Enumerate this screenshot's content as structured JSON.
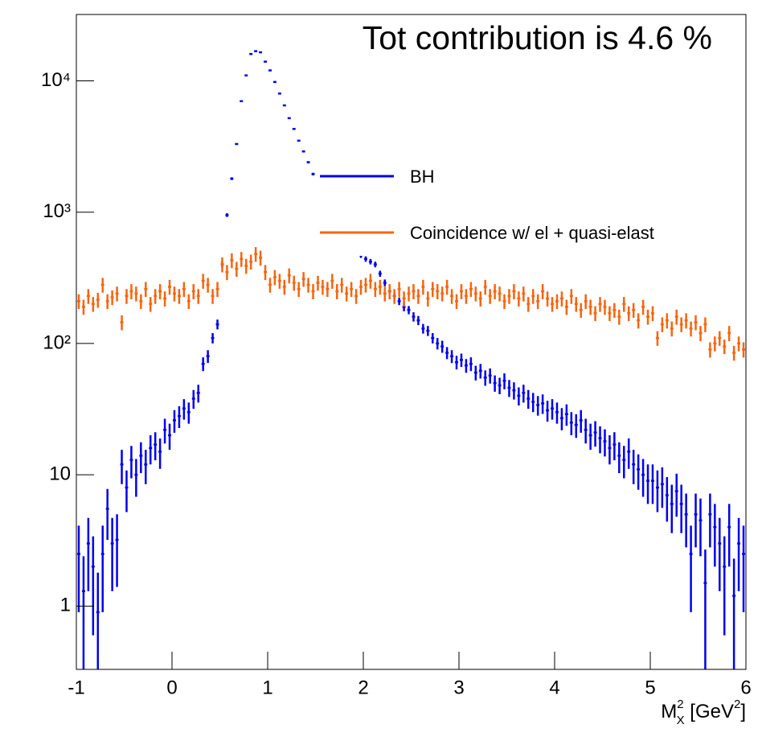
{
  "chart_data": {
    "type": "histogram",
    "title": "Tot contribution is 4.6 %",
    "title_color": "#f7650f",
    "x_label": {
      "base": "M",
      "sup": "2",
      "sub": "X",
      "unit": " [GeV",
      "unit_sup": "2",
      "close": "]"
    },
    "log_y": true,
    "xlim": [
      -1,
      6
    ],
    "xticks": [
      -1,
      0,
      1,
      2,
      3,
      4,
      5,
      6
    ],
    "ylim": [
      0.33,
      32000
    ],
    "yticks": [
      1,
      10,
      {
        "value": 100,
        "label": "10²"
      },
      {
        "value": 1000,
        "label": "10³"
      },
      {
        "value": 10000,
        "label": "10⁴"
      }
    ],
    "bins": [
      -1,
      -0.95,
      -0.9,
      -0.85,
      -0.8,
      -0.75,
      -0.7,
      -0.65,
      -0.6,
      -0.55,
      -0.5,
      -0.45,
      -0.4,
      -0.35,
      -0.3,
      -0.25,
      -0.2,
      -0.15,
      -0.1,
      -0.05,
      0,
      0.05,
      0.1,
      0.15,
      0.2,
      0.25,
      0.3,
      0.35,
      0.4,
      0.45,
      0.5,
      0.55,
      0.6,
      0.65,
      0.7,
      0.75,
      0.8,
      0.85,
      0.9,
      0.95,
      1,
      1.05,
      1.1,
      1.15,
      1.2,
      1.25,
      1.3,
      1.35,
      1.4,
      1.45,
      1.5,
      1.55,
      1.6,
      1.65,
      1.7,
      1.75,
      1.8,
      1.85,
      1.9,
      1.95,
      2,
      2.05,
      2.1,
      2.15,
      2.2,
      2.25,
      2.3,
      2.35,
      2.4,
      2.45,
      2.5,
      2.55,
      2.6,
      2.65,
      2.7,
      2.75,
      2.8,
      2.85,
      2.9,
      2.95,
      3,
      3.05,
      3.1,
      3.15,
      3.2,
      3.25,
      3.3,
      3.35,
      3.4,
      3.45,
      3.5,
      3.55,
      3.6,
      3.65,
      3.7,
      3.75,
      3.8,
      3.85,
      3.9,
      3.95,
      4,
      4.05,
      4.1,
      4.15,
      4.2,
      4.25,
      4.3,
      4.35,
      4.4,
      4.45,
      4.5,
      4.55,
      4.6,
      4.65,
      4.7,
      4.75,
      4.8,
      4.85,
      4.9,
      4.95,
      5,
      5.05,
      5.1,
      5.15,
      5.2,
      5.25,
      5.3,
      5.35,
      5.4,
      5.45,
      5.5,
      5.55,
      5.6,
      5.65,
      5.7,
      5.75,
      5.8,
      5.85,
      5.9,
      5.95,
      6
    ],
    "series": [
      {
        "name": "BH",
        "color": "#0000f0",
        "values": [
          2.5,
          1.3,
          3,
          2,
          0.9,
          2.5,
          5.5,
          3,
          3.2,
          12,
          8,
          13,
          10,
          14,
          12,
          16,
          17,
          15,
          22,
          20,
          26,
          28,
          32,
          30,
          38,
          42,
          70,
          80,
          110,
          140,
          400,
          950,
          1800,
          3300,
          7000,
          11000,
          16000,
          16800,
          16500,
          14000,
          12000,
          9800,
          8000,
          6500,
          5200,
          4300,
          3500,
          2900,
          2400,
          1950,
          1650,
          1400,
          1200,
          1020,
          880,
          760,
          660,
          580,
          520,
          470,
          440,
          420,
          400,
          340,
          290,
          250,
          230,
          210,
          190,
          180,
          160,
          150,
          130,
          125,
          110,
          100,
          95,
          85,
          80,
          72,
          75,
          68,
          70,
          60,
          62,
          55,
          57,
          50,
          48,
          52,
          46,
          44,
          40,
          42,
          38,
          36,
          34,
          35,
          31,
          32,
          30,
          27,
          29,
          25,
          24,
          26,
          22,
          20,
          21,
          19,
          18,
          16,
          17,
          14,
          13,
          15,
          12,
          11,
          10,
          9,
          9,
          8,
          8.5,
          7,
          6,
          7.5,
          6,
          5,
          2.5,
          5,
          4.5,
          1.5,
          5,
          4,
          3,
          2,
          4,
          1.2,
          3,
          2.5
        ],
        "errors": [
          1.6,
          1.1,
          1.7,
          1.4,
          0.9,
          1.6,
          2.3,
          1.7,
          1.8,
          3.5,
          2.8,
          3.6,
          3.2,
          3.7,
          3.5,
          4,
          4.1,
          3.9,
          4.7,
          4.5,
          5.1,
          5.3,
          5.7,
          5.5,
          6.2,
          6.5,
          8.4,
          8.9,
          10,
          12,
          20,
          31,
          42,
          57,
          84,
          105,
          126,
          130,
          128,
          118,
          110,
          99,
          89,
          81,
          72,
          66,
          59,
          54,
          49,
          44,
          41,
          37,
          35,
          32,
          30,
          28,
          26,
          24,
          23,
          22,
          21,
          20,
          20,
          18,
          17,
          16,
          15,
          14,
          14,
          13,
          13,
          12,
          11,
          11,
          10,
          10,
          10,
          9,
          9,
          8.5,
          8.7,
          8.2,
          8.4,
          7.7,
          7.9,
          7.4,
          7.5,
          7.1,
          6.9,
          7.2,
          6.8,
          6.6,
          6.3,
          6.5,
          6.2,
          6,
          5.8,
          5.9,
          5.6,
          5.7,
          5.5,
          5.2,
          5.4,
          5,
          4.9,
          5.1,
          4.7,
          4.5,
          4.6,
          4.4,
          4.2,
          4,
          4.1,
          3.7,
          3.6,
          3.9,
          3.5,
          3.3,
          3.2,
          3,
          3,
          2.8,
          2.9,
          2.6,
          2.4,
          2.7,
          2.4,
          2.2,
          1.6,
          2.2,
          2.1,
          1.2,
          2.2,
          2,
          1.7,
          1.4,
          2,
          1.1,
          1.7,
          1.6
        ]
      },
      {
        "name": "Coincidence w/ el + quasi-elast",
        "color": "#f7650f",
        "values": [
          210,
          190,
          230,
          200,
          215,
          280,
          210,
          225,
          240,
          145,
          230,
          250,
          240,
          210,
          260,
          200,
          230,
          250,
          220,
          270,
          240,
          230,
          260,
          210,
          250,
          230,
          300,
          280,
          230,
          260,
          400,
          350,
          430,
          370,
          440,
          390,
          420,
          480,
          450,
          350,
          280,
          320,
          300,
          270,
          330,
          290,
          260,
          310,
          280,
          250,
          290,
          270,
          260,
          300,
          250,
          280,
          240,
          260,
          230,
          270,
          280,
          300,
          260,
          270,
          240,
          250,
          230,
          260,
          220,
          240,
          250,
          230,
          270,
          220,
          260,
          250,
          240,
          270,
          230,
          210,
          250,
          230,
          260,
          240,
          220,
          270,
          230,
          250,
          240,
          210,
          230,
          250,
          220,
          240,
          200,
          230,
          210,
          250,
          220,
          200,
          210,
          220,
          190,
          230,
          200,
          180,
          210,
          190,
          170,
          200,
          190,
          170,
          180,
          160,
          200,
          170,
          180,
          150,
          190,
          160,
          170,
          110,
          140,
          150,
          130,
          160,
          140,
          150,
          130,
          145,
          120,
          140,
          90,
          100,
          110,
          95,
          120,
          85,
          100,
          90
        ],
        "errors": [
          27,
          25,
          30,
          26,
          28,
          36,
          27,
          29,
          31,
          19,
          30,
          33,
          31,
          27,
          34,
          26,
          30,
          33,
          29,
          35,
          31,
          30,
          34,
          27,
          33,
          30,
          39,
          36,
          30,
          34,
          52,
          46,
          56,
          48,
          57,
          51,
          55,
          62,
          59,
          46,
          36,
          42,
          39,
          35,
          43,
          38,
          34,
          40,
          36,
          33,
          38,
          35,
          34,
          39,
          33,
          36,
          31,
          34,
          30,
          35,
          36,
          39,
          34,
          35,
          31,
          33,
          30,
          34,
          29,
          31,
          33,
          30,
          35,
          29,
          34,
          33,
          31,
          35,
          30,
          27,
          33,
          30,
          34,
          31,
          29,
          35,
          30,
          33,
          31,
          27,
          30,
          33,
          29,
          31,
          26,
          30,
          27,
          33,
          29,
          26,
          27,
          29,
          25,
          30,
          26,
          23,
          27,
          25,
          22,
          26,
          25,
          22,
          23,
          21,
          26,
          22,
          23,
          20,
          25,
          21,
          22,
          14,
          18,
          20,
          17,
          21,
          18,
          20,
          17,
          19,
          16,
          18,
          12,
          13,
          14,
          12,
          16,
          11,
          13,
          12
        ]
      }
    ]
  }
}
